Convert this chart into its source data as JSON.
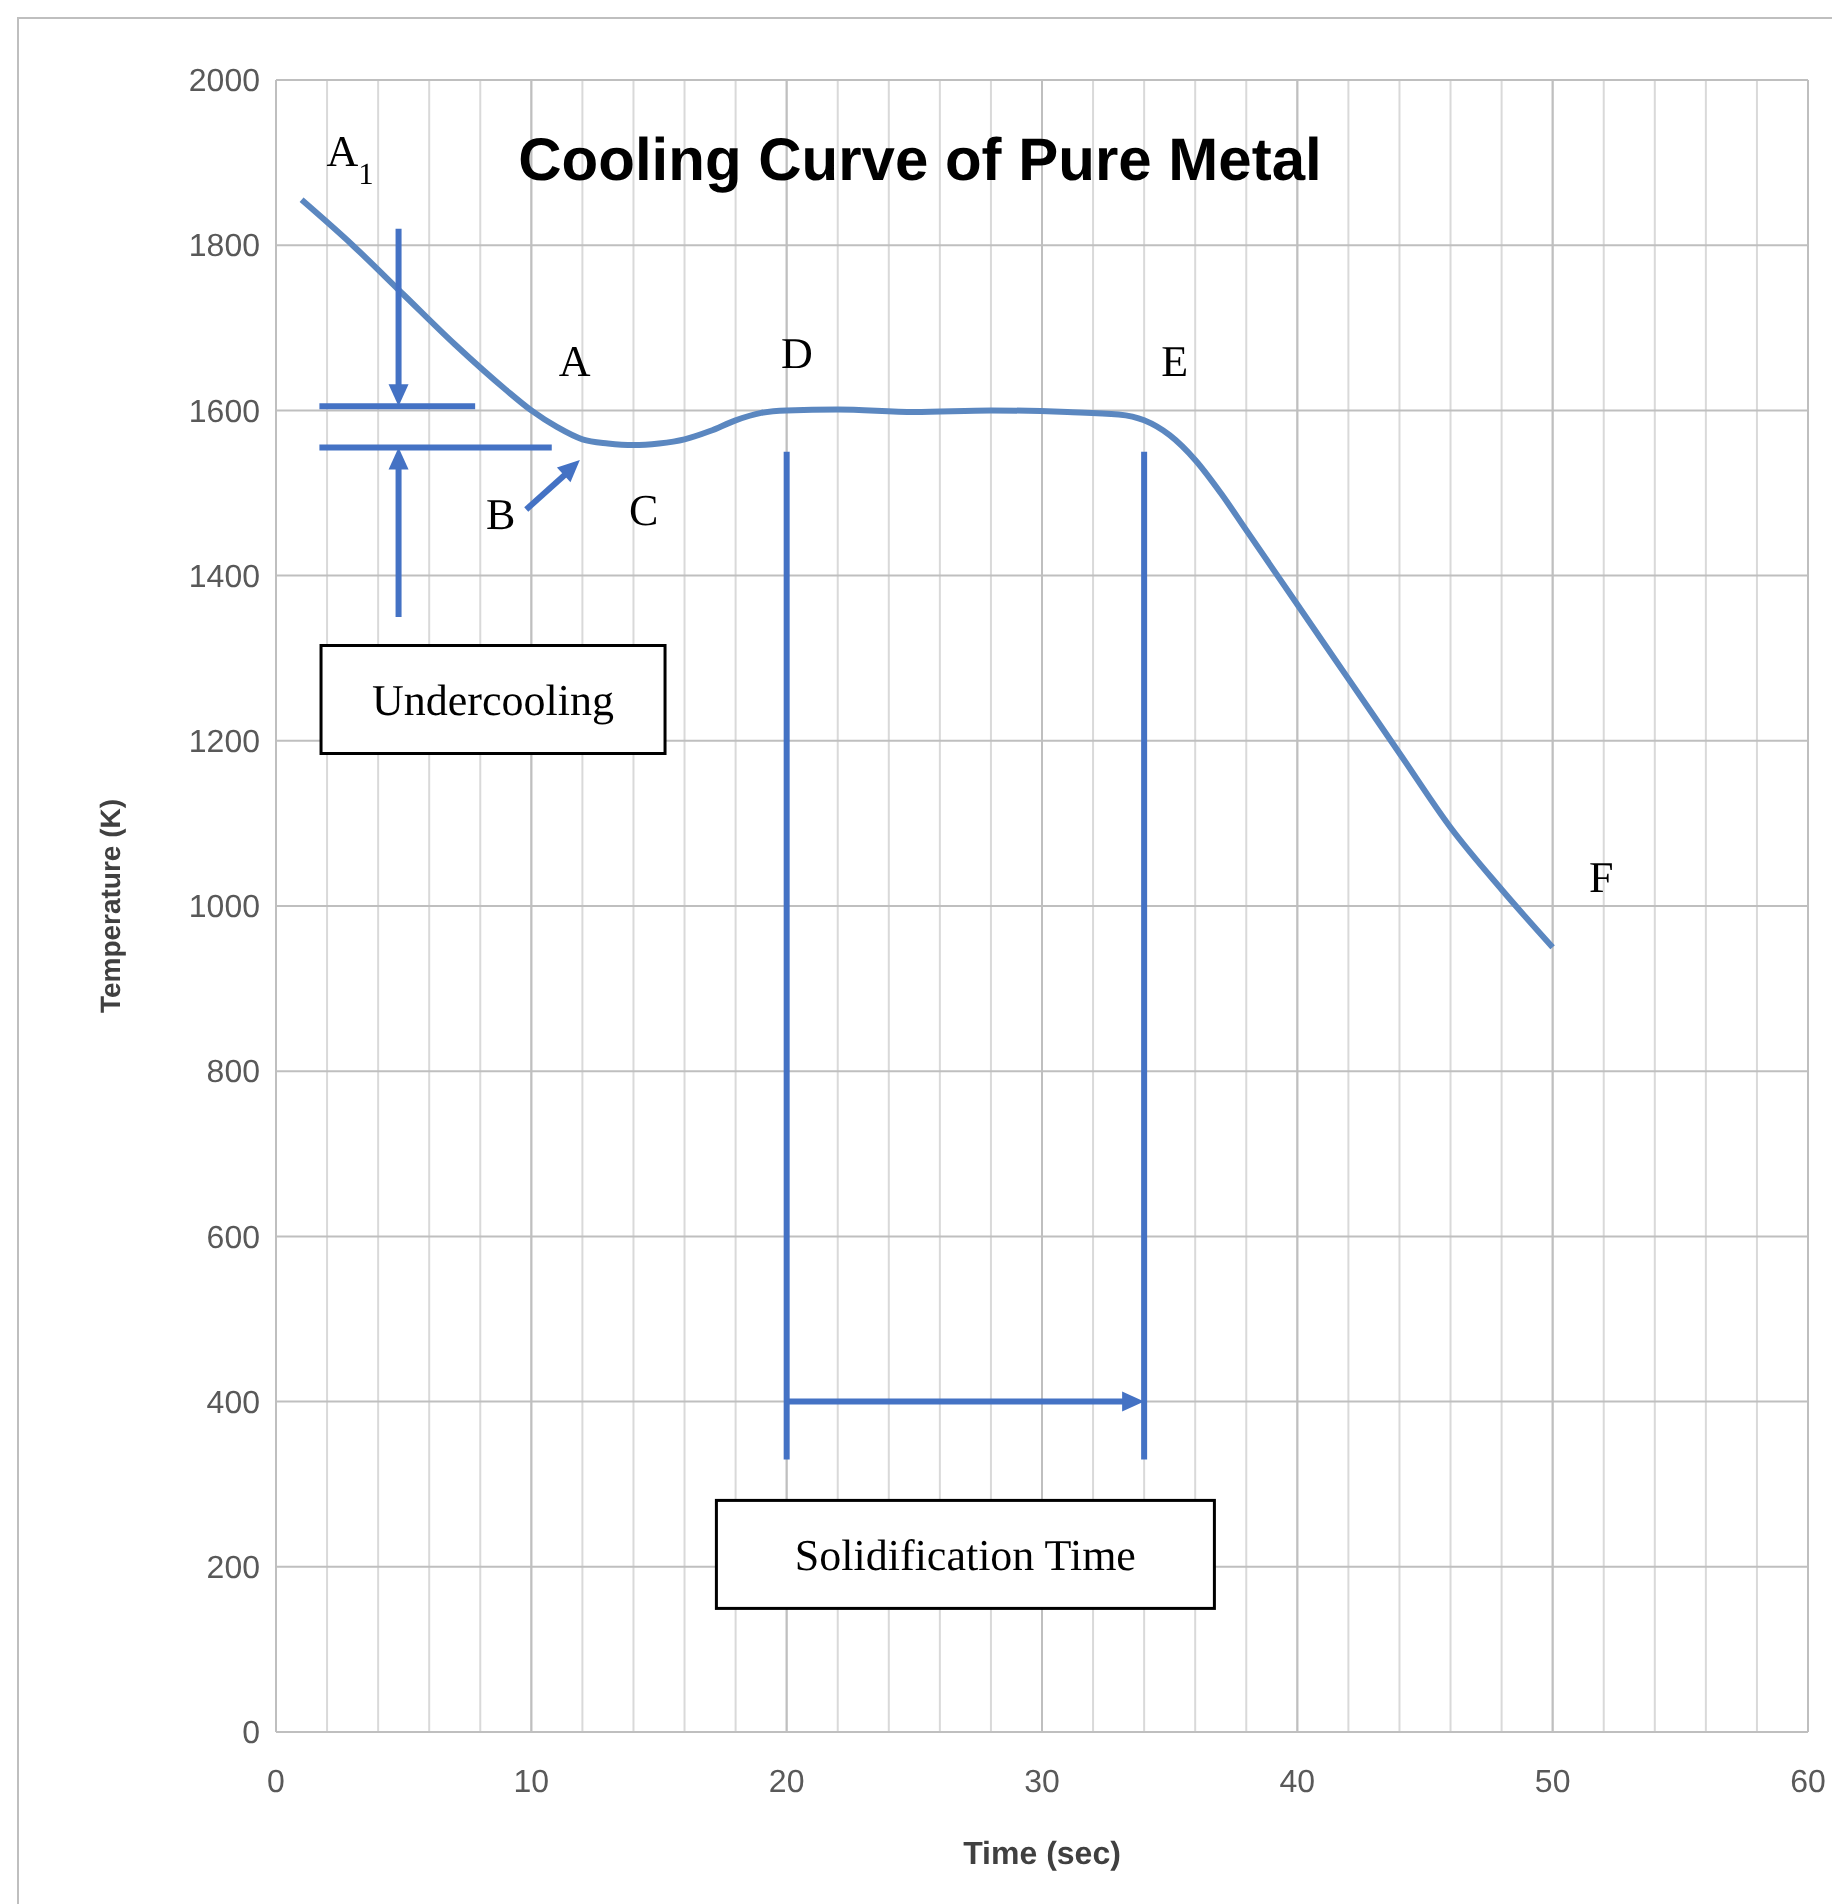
{
  "chart_data": {
    "type": "line",
    "title": "Cooling Curve of Pure Metal",
    "xlabel": "Time (sec)",
    "ylabel": "Temperature (K)",
    "x": [
      1,
      3,
      5,
      7,
      9,
      10,
      11,
      12,
      13,
      14,
      15,
      16,
      17,
      18,
      19,
      20,
      22,
      25,
      28,
      31,
      33,
      34,
      35,
      36,
      37,
      38,
      40,
      42,
      44,
      46,
      48,
      50
    ],
    "series": [
      {
        "color": "#5b87c0",
        "values": [
          1855,
          1800,
          1740,
          1680,
          1625,
          1600,
          1580,
          1565,
          1560,
          1558,
          1560,
          1565,
          1575,
          1588,
          1597,
          1600,
          1601,
          1598,
          1600,
          1598,
          1595,
          1588,
          1570,
          1540,
          1500,
          1455,
          1365,
          1275,
          1185,
          1095,
          1020,
          950
        ]
      }
    ],
    "xlim": [
      0,
      60
    ],
    "xticks": [
      0,
      10,
      20,
      30,
      40,
      50,
      60
    ],
    "ylim": [
      0,
      2000
    ],
    "yticks": [
      0,
      200,
      400,
      600,
      800,
      1000,
      1200,
      1400,
      1600,
      1800,
      2000
    ],
    "grid": true,
    "marker": "none",
    "line_style": "solid",
    "ref_lines": [
      {
        "axis": "x",
        "value": 20,
        "color": "#4472c4"
      },
      {
        "axis": "x",
        "value": 34,
        "color": "#4472c4"
      }
    ],
    "annotations": [
      "A$_{1}$",
      "A",
      "B",
      "C",
      "D",
      "E",
      "F",
      "Undercooling",
      "Solidification Time"
    ]
  }
}
